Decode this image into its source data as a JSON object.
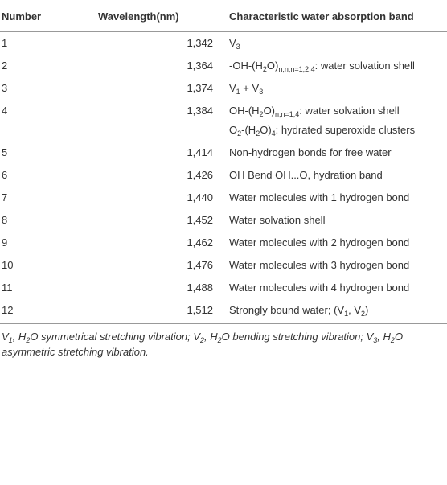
{
  "table": {
    "header": [
      "Number",
      "Wavelength(nm)",
      "Characteristic water absorption band"
    ],
    "rows": [
      {
        "number": "1",
        "wavelength": "1,342",
        "band": [
          [
            "V",
            {
              "sub": "3"
            }
          ]
        ]
      },
      {
        "number": "2",
        "wavelength": "1,364",
        "band": [
          [
            "-OH-(H",
            {
              "sub": "2"
            },
            "O)",
            {
              "sub": "n,n,n=1,2,4"
            },
            ": water solvation shell"
          ]
        ]
      },
      {
        "number": "3",
        "wavelength": "1,374",
        "band": [
          [
            "V",
            {
              "sub": "1"
            },
            " + V",
            {
              "sub": "3"
            }
          ]
        ]
      },
      {
        "number": "4",
        "wavelength": "1,384",
        "band": [
          [
            "OH-(H",
            {
              "sub": "2"
            },
            "O)",
            {
              "sub": "n,n=1,4"
            },
            ": water solvation shell"
          ],
          [
            "O",
            {
              "sub": "2"
            },
            "-(H",
            {
              "sub": "2"
            },
            "O)",
            {
              "sub": "4"
            },
            ": hydrated superoxide clusters"
          ]
        ]
      },
      {
        "number": "5",
        "wavelength": "1,414",
        "band": [
          [
            "Non-hydrogen bonds for free water"
          ]
        ]
      },
      {
        "number": "6",
        "wavelength": "1,426",
        "band": [
          [
            "OH Bend OH...O, hydration band"
          ]
        ]
      },
      {
        "number": "7",
        "wavelength": "1,440",
        "band": [
          [
            "Water molecules with 1 hydrogen bond"
          ]
        ]
      },
      {
        "number": "8",
        "wavelength": "1,452",
        "band": [
          [
            "Water solvation shell"
          ]
        ]
      },
      {
        "number": "9",
        "wavelength": "1,462",
        "band": [
          [
            "Water molecules with 2 hydrogen bond"
          ]
        ]
      },
      {
        "number": "10",
        "wavelength": "1,476",
        "band": [
          [
            "Water molecules with 3 hydrogen bond"
          ]
        ]
      },
      {
        "number": "11",
        "wavelength": "1,488",
        "band": [
          [
            "Water molecules with 4 hydrogen bond"
          ]
        ]
      },
      {
        "number": "12",
        "wavelength": "1,512",
        "band": [
          [
            "Strongly bound water; (V",
            {
              "sub": "1"
            },
            ", V",
            {
              "sub": "2"
            },
            ")"
          ]
        ]
      }
    ],
    "footnote": [
      "V",
      {
        "sub": "1"
      },
      ", H",
      {
        "sub": "2"
      },
      "O symmetrical stretching vibration; V",
      {
        "sub": "2"
      },
      ", H",
      {
        "sub": "2"
      },
      "O bending stretching vibration; V",
      {
        "sub": "3"
      },
      ", H",
      {
        "sub": "2"
      },
      "O asymmetric stretching vibration."
    ]
  }
}
